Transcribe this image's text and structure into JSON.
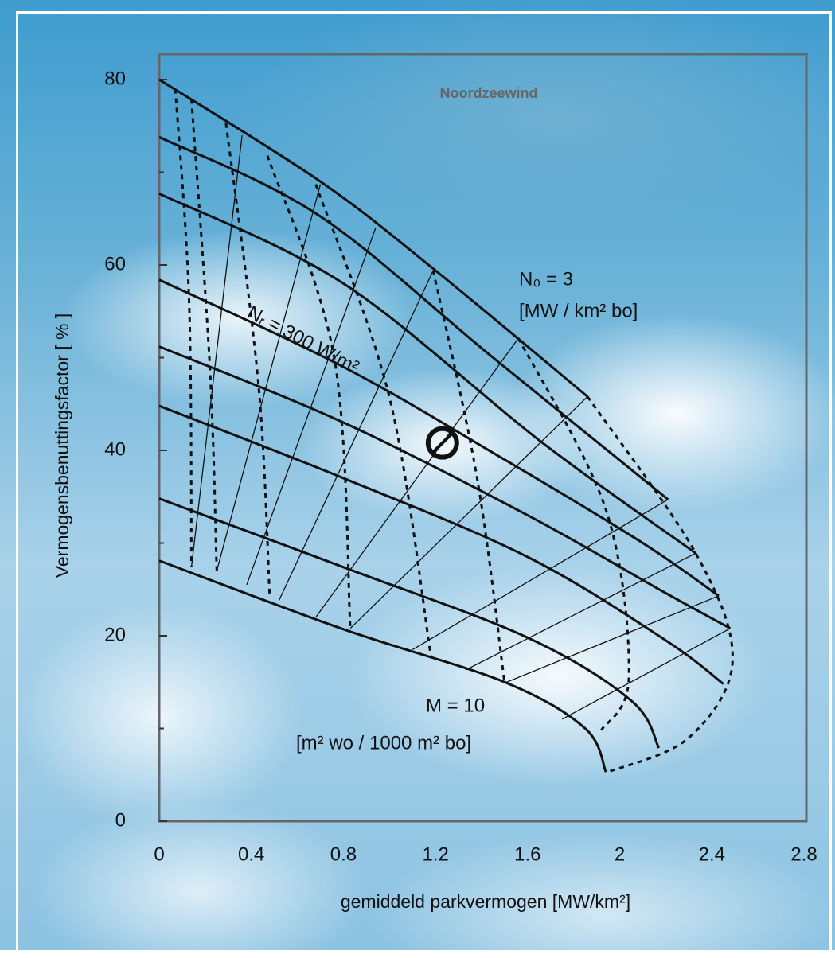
{
  "chart_data": {
    "type": "nomogram",
    "title": "Noordzeewind",
    "xlabel": "gemiddeld parkvermogen [MW/km²]",
    "ylabel": "Vermogensbenuttingsfactor [ % ]",
    "xlim": [
      0,
      2.8
    ],
    "ylim": [
      0,
      80
    ],
    "xticks": [
      0,
      0.4,
      0.8,
      1.2,
      1.6,
      2,
      2.4,
      2.8
    ],
    "yticks": [
      0,
      20,
      40,
      60,
      80
    ],
    "yminorticks": [
      10,
      30,
      50,
      70
    ],
    "annotations": [
      "N₀ = 3",
      "[MW / km² bo]",
      "Nᵣ = 300 W/m²",
      "M = 10",
      "[m² wo / 1000 m² bo]"
    ],
    "marker": {
      "x": 1.23,
      "y": 40.8
    },
    "series": [
      {
        "style": "solid",
        "x": [
          0,
          0.7,
          1.2,
          1.86
        ],
        "y": [
          80,
          69,
          59.4,
          45.8
        ]
      },
      {
        "style": "solid",
        "x": [
          0,
          0.69,
          1.45,
          2.21
        ],
        "y": [
          73.8,
          65.4,
          50,
          34.7
        ]
      },
      {
        "style": "solid",
        "x": [
          0,
          0.8,
          1.66,
          2.33
        ],
        "y": [
          67.7,
          58,
          40.9,
          28.9
        ]
      },
      {
        "style": "solid",
        "x": [
          0,
          0.8,
          1.5,
          2.1,
          2.43
        ],
        "y": [
          58.4,
          49,
          39,
          30,
          24.3
        ]
      },
      {
        "style": "solid",
        "x": [
          0,
          0.8,
          1.6,
          2.2,
          2.48
        ],
        "y": [
          51.2,
          43,
          33,
          24.6,
          20.8
        ]
      },
      {
        "style": "solid",
        "x": [
          0,
          0.8,
          1.6,
          2.2,
          2.45
        ],
        "y": [
          44.8,
          37,
          28.5,
          19.5,
          14.8
        ]
      },
      {
        "style": "solid",
        "x": [
          0,
          0.8,
          1.6,
          2.05,
          2.17
        ],
        "y": [
          34.8,
          27.4,
          19.8,
          13,
          7.9
        ]
      },
      {
        "style": "solid",
        "x": [
          0,
          0.8,
          1.5,
          1.85,
          1.94
        ],
        "y": [
          28.1,
          20.7,
          15,
          10,
          5.3
        ]
      },
      {
        "style": "dashed",
        "x": [
          0.07,
          0.13,
          0.14
        ],
        "y": [
          79,
          56,
          27.4
        ]
      },
      {
        "style": "dashed",
        "x": [
          0.14,
          0.22,
          0.25
        ],
        "y": [
          77.9,
          49,
          27
        ]
      },
      {
        "style": "dashed",
        "x": [
          0.29,
          0.43,
          0.48
        ],
        "y": [
          75.3,
          47.4,
          24.2
        ]
      },
      {
        "style": "dashed",
        "x": [
          0.47,
          0.76,
          0.83
        ],
        "y": [
          71.8,
          50,
          20.8
        ]
      },
      {
        "style": "dashed",
        "x": [
          0.68,
          1.0,
          1.18
        ],
        "y": [
          68.7,
          45.7,
          17.8
        ]
      },
      {
        "style": "dashed",
        "x": [
          1.19,
          1.38,
          1.5
        ],
        "y": [
          59.4,
          37.1,
          14.9
        ]
      },
      {
        "style": "dashed",
        "x": [
          1.56,
          1.94,
          2.04,
          1.92
        ],
        "y": [
          52.1,
          33.6,
          15.6,
          9.8
        ]
      },
      {
        "style": "dashed",
        "x": [
          1.86,
          2.33,
          2.49,
          2.3,
          1.95
        ],
        "y": [
          45.8,
          28.9,
          17.3,
          9,
          5.3
        ]
      },
      {
        "style": "thin",
        "x": [
          0.14,
          0.36
        ],
        "y": [
          27.4,
          74
        ]
      },
      {
        "style": "thin",
        "x": [
          0.25,
          0.7
        ],
        "y": [
          27,
          68.7
        ]
      },
      {
        "style": "thin",
        "x": [
          0.38,
          0.94
        ],
        "y": [
          25.5,
          64
        ]
      },
      {
        "style": "thin",
        "x": [
          0.52,
          1.19
        ],
        "y": [
          23.8,
          59.4
        ]
      },
      {
        "style": "thin",
        "x": [
          0.68,
          1.56
        ],
        "y": [
          22,
          52.1
        ]
      },
      {
        "style": "thin",
        "x": [
          0.83,
          1.86
        ],
        "y": [
          20.8,
          45.8
        ]
      },
      {
        "style": "thin",
        "x": [
          1.1,
          2.21
        ],
        "y": [
          18.5,
          34.7
        ]
      },
      {
        "style": "thin",
        "x": [
          1.33,
          2.33
        ],
        "y": [
          16.3,
          28.9
        ]
      },
      {
        "style": "thin",
        "x": [
          1.5,
          2.43
        ],
        "y": [
          14.9,
          24.3
        ]
      },
      {
        "style": "thin",
        "x": [
          1.75,
          2.48
        ],
        "y": [
          11,
          20.8
        ]
      }
    ]
  }
}
